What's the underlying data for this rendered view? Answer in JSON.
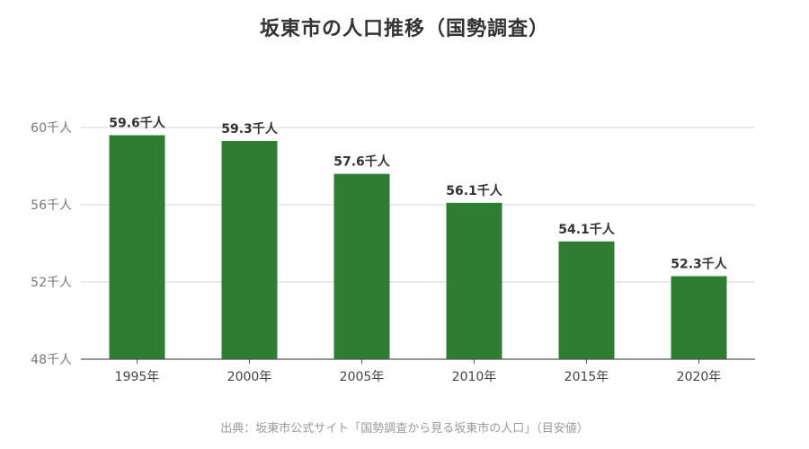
{
  "chart_data": {
    "type": "bar",
    "title": "坂東市の人口推移（国勢調査）",
    "categories": [
      "1995年",
      "2000年",
      "2005年",
      "2010年",
      "2015年",
      "2020年"
    ],
    "values": [
      59.6,
      59.3,
      57.6,
      56.1,
      54.1,
      52.3
    ],
    "data_labels": [
      "59.6千人",
      "59.3千人",
      "57.6千人",
      "56.1千人",
      "54.1千人",
      "52.3千人"
    ],
    "yticks": [
      48,
      52,
      56,
      60
    ],
    "ytick_labels": [
      "48千人",
      "52千人",
      "56千人",
      "60千人"
    ],
    "ylim": [
      48,
      60
    ],
    "xlabel": "",
    "ylabel": "",
    "grid": true,
    "bar_color": "#2e7d32",
    "source": "出典：坂東市公式サイト「国勢調査から見る坂東市の人口」（目安値）"
  }
}
